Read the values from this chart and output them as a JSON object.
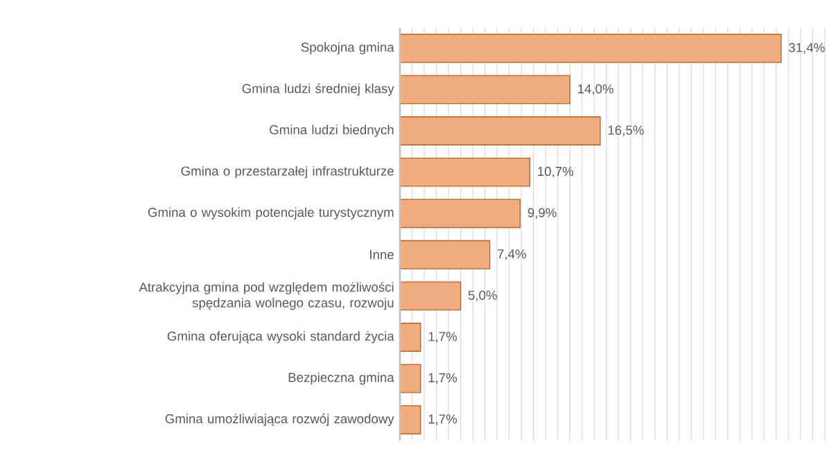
{
  "chart_data": {
    "type": "bar",
    "orientation": "horizontal",
    "categories": [
      "Spokojna gmina",
      "Gmina ludzi średniej klasy",
      "Gmina ludzi biednych",
      "Gmina o przestarzałej infrastrukturze",
      "Gmina o wysokim potencjale turystycznym",
      "Inne",
      "Atrakcyjna gmina pod względem możliwości spędzania wolnego czasu, rozwoju",
      "Gmina oferująca wysoki standard życia",
      "Bezpieczna gmina",
      "Gmina umożliwiająca rozwój zawodowy"
    ],
    "values": [
      31.4,
      14.0,
      16.5,
      10.7,
      9.9,
      7.4,
      5.0,
      1.7,
      1.7,
      1.7
    ],
    "value_labels": [
      "31,4%",
      "14,0%",
      "16,5%",
      "10,7%",
      "9,9%",
      "7,4%",
      "5,0%",
      "1,7%",
      "1,7%",
      "1,7%"
    ],
    "color": "#f0ad80",
    "xlim": [
      0,
      35
    ],
    "xticks": [
      {
        "value": 0,
        "label": null
      },
      {
        "value": 1,
        "label": null
      },
      {
        "value": 2,
        "label": null
      },
      {
        "value": 3,
        "label": null
      },
      {
        "value": 4,
        "label": null
      },
      {
        "value": 5,
        "label": null
      },
      {
        "value": 6,
        "label": null
      },
      {
        "value": 7,
        "label": null
      },
      {
        "value": 8,
        "label": null
      },
      {
        "value": 9,
        "label": null
      },
      {
        "value": 10,
        "label": null
      },
      {
        "value": 11,
        "label": null
      },
      {
        "value": 12,
        "label": null
      },
      {
        "value": 13,
        "label": null
      },
      {
        "value": 14,
        "label": null
      },
      {
        "value": 15,
        "label": null
      },
      {
        "value": 16,
        "label": null
      },
      {
        "value": 17,
        "label": null
      },
      {
        "value": 18,
        "label": null
      },
      {
        "value": 19,
        "label": null
      },
      {
        "value": 20,
        "label": null
      },
      {
        "value": 21,
        "label": null
      },
      {
        "value": 22,
        "label": null
      },
      {
        "value": 23,
        "label": null
      },
      {
        "value": 24,
        "label": null
      },
      {
        "value": 25,
        "label": null
      },
      {
        "value": 26,
        "label": null
      },
      {
        "value": 27,
        "label": null
      },
      {
        "value": 28,
        "label": null
      },
      {
        "value": 29,
        "label": null
      },
      {
        "value": 30,
        "label": null
      },
      {
        "value": 31,
        "label": null
      },
      {
        "value": 32,
        "label": null
      },
      {
        "value": 33,
        "label": null
      },
      {
        "value": 34,
        "label": null
      },
      {
        "value": 35,
        "label": null
      }
    ],
    "tick_labels": "y",
    "grid": "x"
  }
}
